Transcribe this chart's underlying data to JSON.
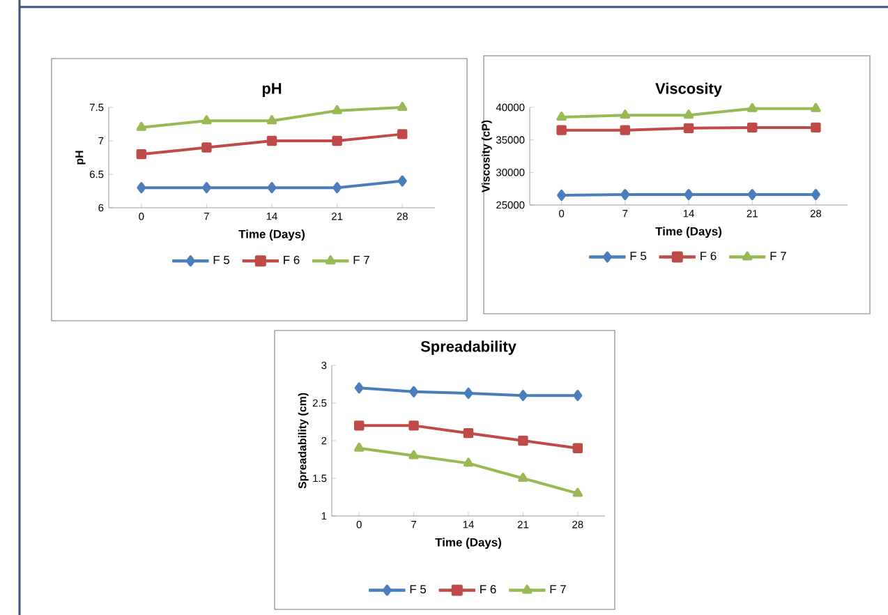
{
  "chart_data": [
    {
      "type": "line",
      "title": "pH",
      "xlabel": "Time (Days)",
      "ylabel": "pH",
      "categories": [
        "0",
        "7",
        "14",
        "21",
        "28"
      ],
      "ylim": [
        6,
        7.5
      ],
      "yticks": [
        6,
        6.5,
        7,
        7.5
      ],
      "grid": false,
      "legend": "bottom",
      "series": [
        {
          "name": "F 5",
          "color": "#4a7ebb",
          "marker": "diamond",
          "values": [
            6.3,
            6.3,
            6.3,
            6.3,
            6.4
          ]
        },
        {
          "name": "F 6",
          "color": "#be4b48",
          "marker": "square",
          "values": [
            6.8,
            6.9,
            7.0,
            7.0,
            7.1
          ]
        },
        {
          "name": "F 7",
          "color": "#98b954",
          "marker": "triangle",
          "values": [
            7.2,
            7.3,
            7.3,
            7.45,
            7.5
          ]
        }
      ]
    },
    {
      "type": "line",
      "title": "Viscosity",
      "xlabel": "Time (Days)",
      "ylabel": "Viscosity (cP)",
      "categories": [
        "0",
        "7",
        "14",
        "21",
        "28"
      ],
      "ylim": [
        25000,
        40000
      ],
      "yticks": [
        25000,
        30000,
        35000,
        40000
      ],
      "grid": false,
      "legend": "bottom",
      "series": [
        {
          "name": "F 5",
          "color": "#4a7ebb",
          "marker": "diamond",
          "values": [
            26500,
            26600,
            26600,
            26600,
            26600
          ]
        },
        {
          "name": "F 6",
          "color": "#be4b48",
          "marker": "square",
          "values": [
            36500,
            36500,
            36800,
            36900,
            36900
          ]
        },
        {
          "name": "F 7",
          "color": "#98b954",
          "marker": "triangle",
          "values": [
            38500,
            38800,
            38800,
            39800,
            39800
          ]
        }
      ]
    },
    {
      "type": "line",
      "title": "Spreadability",
      "xlabel": "Time (Days)",
      "ylabel": "Spreadability (cm)",
      "categories": [
        "0",
        "7",
        "14",
        "21",
        "28"
      ],
      "ylim": [
        1,
        3
      ],
      "yticks": [
        1,
        1.5,
        2,
        2.5,
        3
      ],
      "grid": false,
      "legend": "bottom",
      "series": [
        {
          "name": "F 5",
          "color": "#4a7ebb",
          "marker": "diamond",
          "values": [
            2.7,
            2.65,
            2.63,
            2.6,
            2.6
          ]
        },
        {
          "name": "F 6",
          "color": "#be4b48",
          "marker": "square",
          "values": [
            2.2,
            2.2,
            2.1,
            2.0,
            1.9
          ]
        },
        {
          "name": "F 7",
          "color": "#98b954",
          "marker": "triangle",
          "values": [
            1.9,
            1.8,
            1.7,
            1.5,
            1.3
          ]
        }
      ]
    }
  ]
}
